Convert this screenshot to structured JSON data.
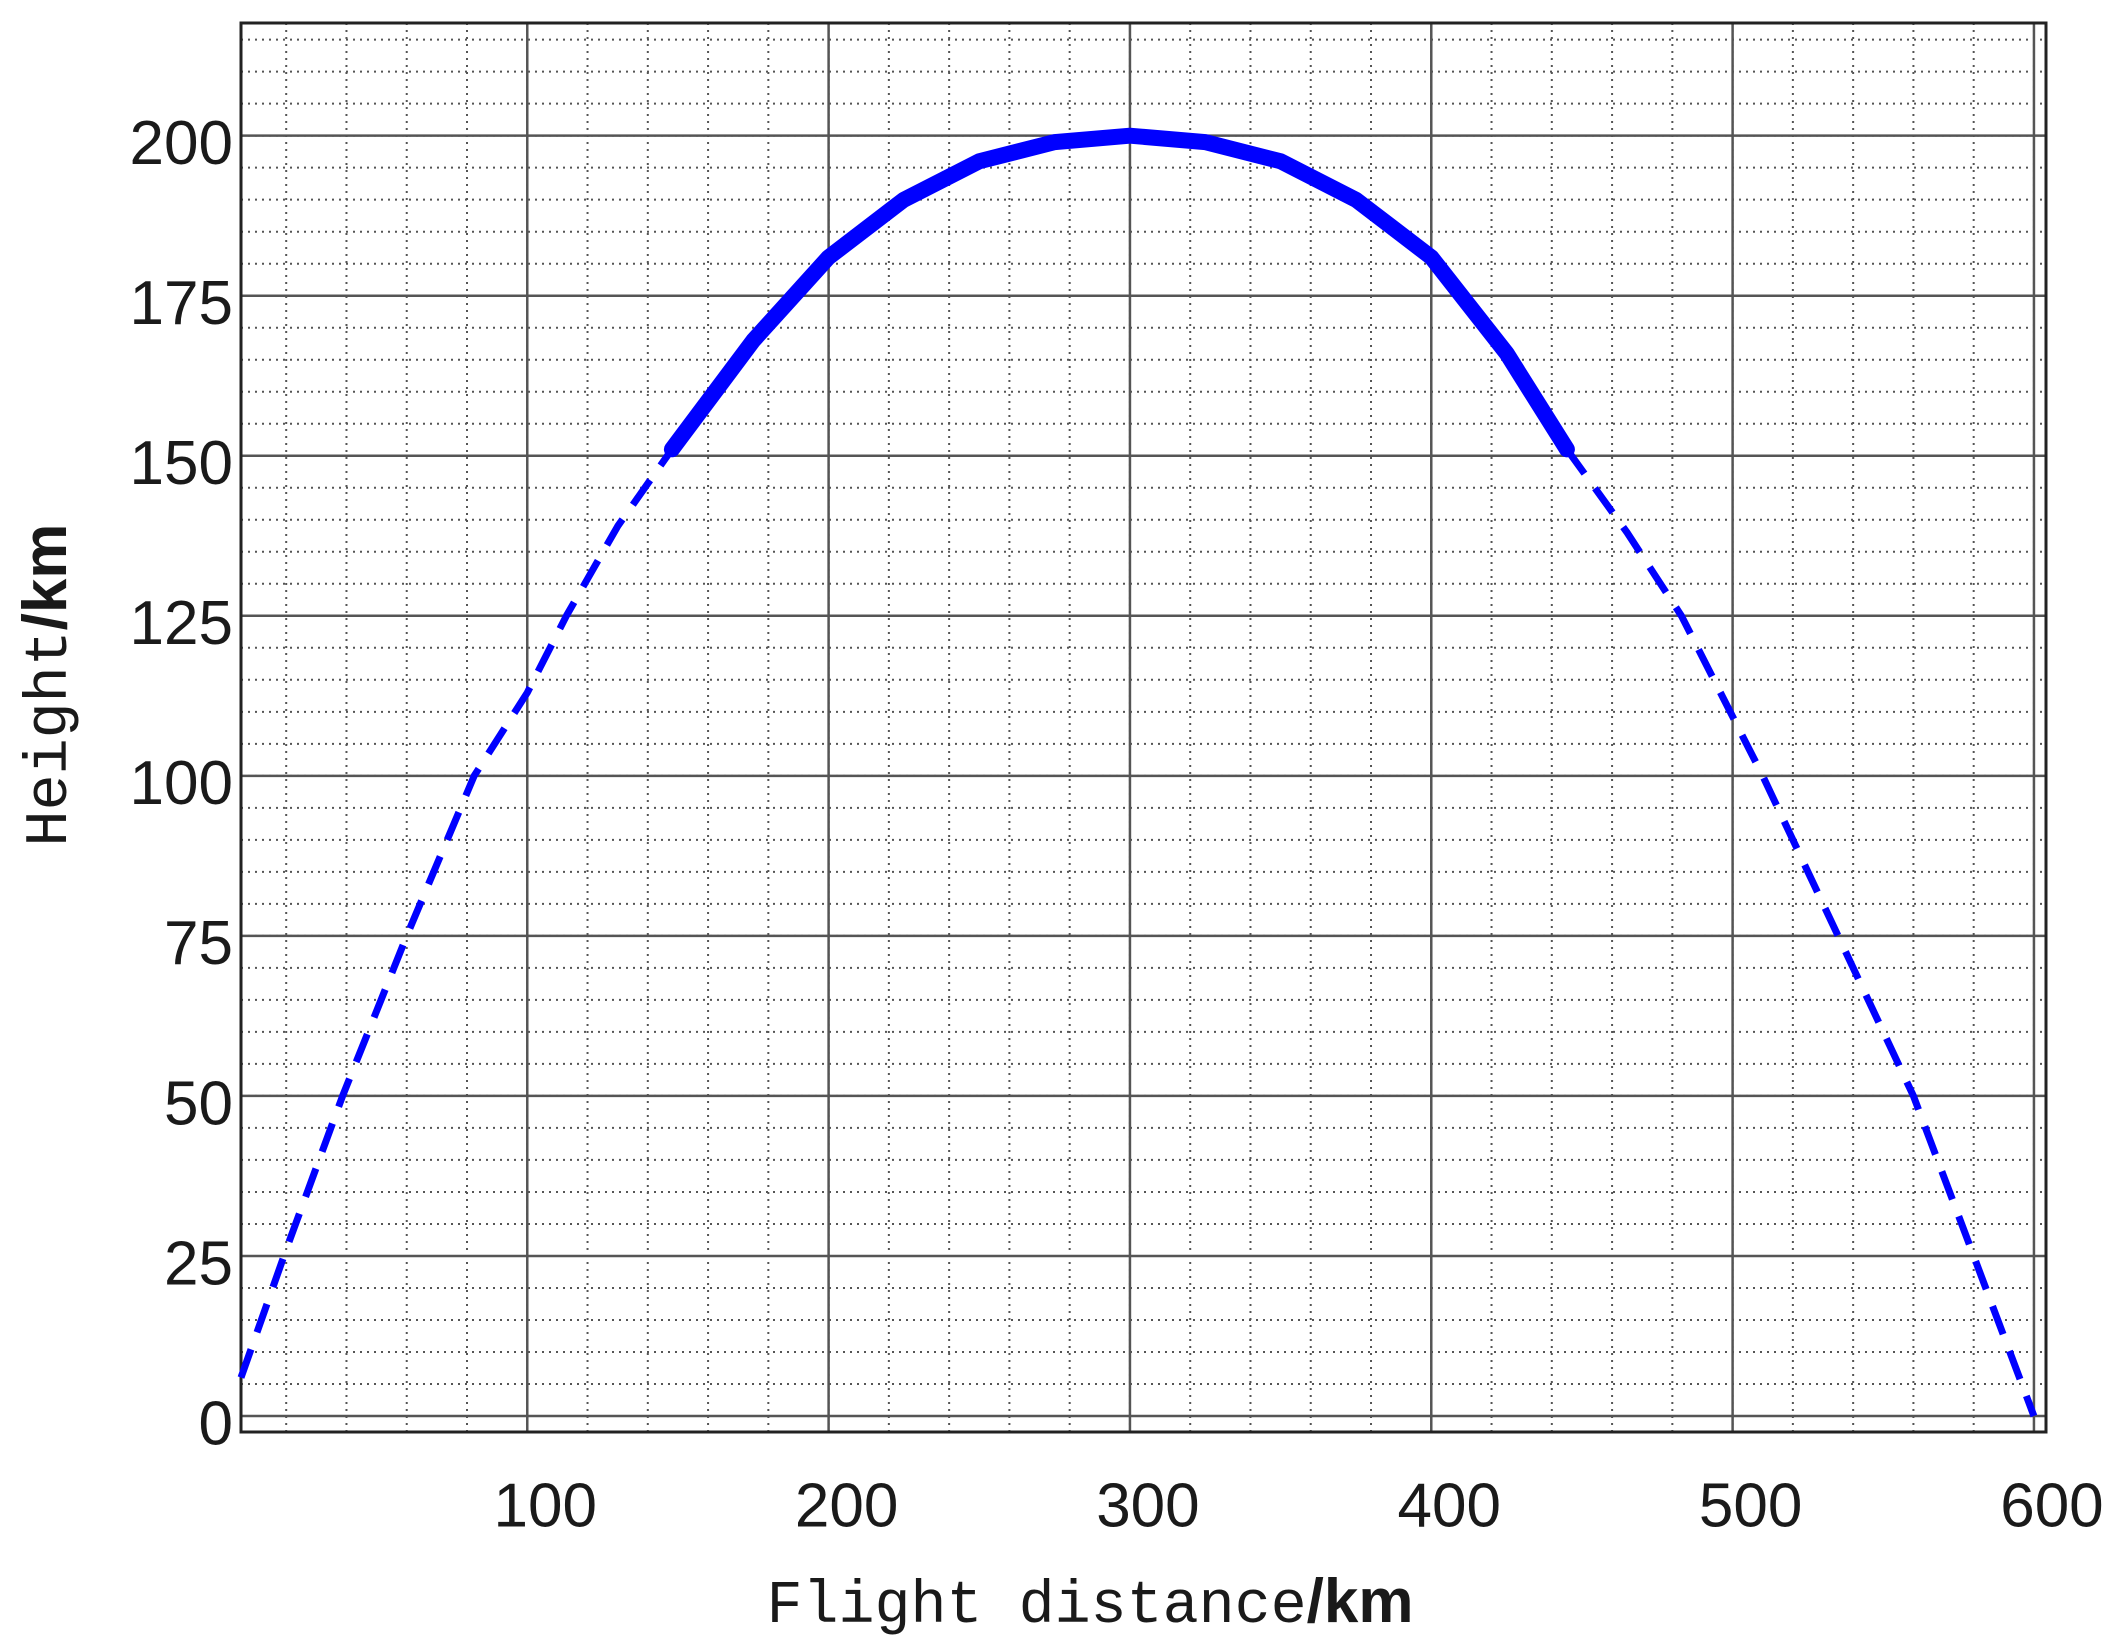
{
  "chart_data": {
    "type": "line",
    "xlabel": "Flight distance",
    "xlabel_unit": "/km",
    "ylabel": "Height",
    "ylabel_unit": "/km",
    "xlim": [
      5,
      604
    ],
    "xticks": [
      100,
      200,
      300,
      400,
      500,
      600
    ],
    "ylim": [
      -2.5,
      217.6
    ],
    "yticks": [
      0,
      25,
      50,
      75,
      100,
      125,
      150,
      175,
      200
    ],
    "grid": true,
    "minor_grid_step": {
      "x": 20,
      "y": 5
    },
    "series": [
      {
        "color": "#0000ff",
        "line_style": "dashed",
        "x": [
          5,
          20,
          38.7,
          60,
          82.4,
          100,
          113,
          130,
          148
        ],
        "values": [
          6,
          26,
          50,
          75,
          100,
          113,
          125,
          139,
          151
        ]
      },
      {
        "color": "#0000ff",
        "line_style": "solid",
        "x": [
          148,
          175,
          200,
          225,
          250,
          275,
          300,
          325,
          350,
          375,
          400,
          425,
          445
        ],
        "values": [
          151,
          168,
          181,
          190,
          196,
          199,
          200,
          199,
          196,
          190,
          181,
          166,
          151
        ]
      },
      {
        "color": "#0000ff",
        "line_style": "dashed",
        "x": [
          445,
          465,
          483,
          510,
          535,
          560,
          580,
          600
        ],
        "values": [
          151,
          138,
          125,
          100,
          75,
          50,
          25,
          0
        ]
      }
    ]
  }
}
